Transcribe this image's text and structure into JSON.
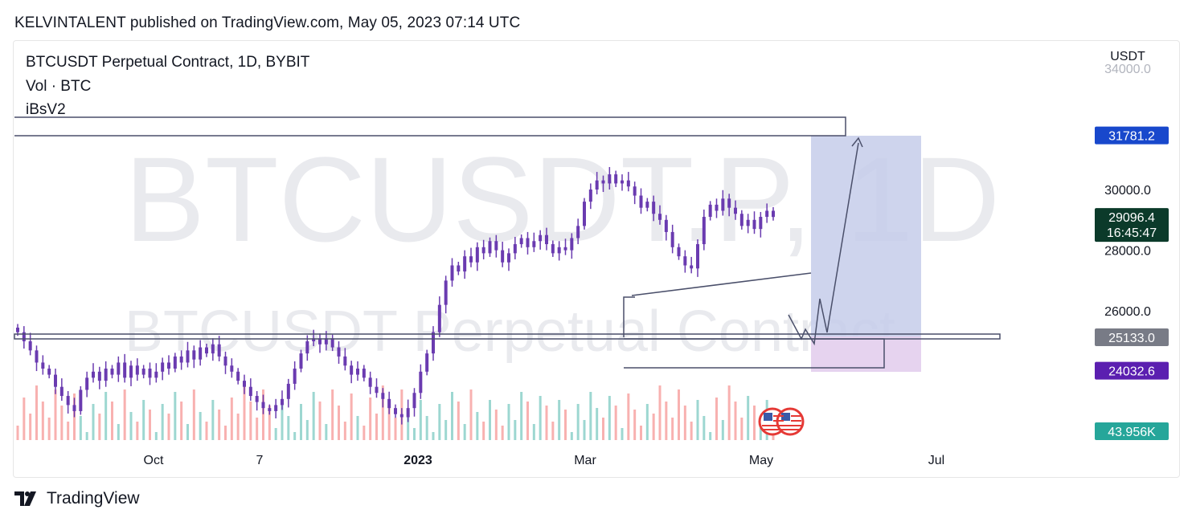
{
  "header": {
    "published_line": "KELVINTALENT published on TradingView.com, May 05, 2023 07:14 UTC"
  },
  "legend": {
    "symbol_line": "BTCUSDT Perpetual Contract, 1D, BYBIT",
    "volume_line": "Vol · BTC",
    "indicator_line": "iBsV2"
  },
  "watermark": {
    "big": "BTCUSDT.P, 1D",
    "sub": "BTCUSDT Perpetual Contract"
  },
  "footer": {
    "brand": "TradingView"
  },
  "colors": {
    "up": "#26a69a",
    "down": "#ef5350",
    "candle": "#6a3bb0",
    "projection_box": "#9aa6d8",
    "stop_box": "#c8a6e2"
  },
  "chart_data": {
    "type": "candlestick",
    "symbol": "BTCUSDT Perpetual Contract",
    "timeframe": "1D",
    "exchange": "BYBIT",
    "currency": "USDT",
    "y_axis": {
      "ticks": [
        "34000.0",
        "30000.0",
        "28000.0",
        "26000.0"
      ],
      "range": [
        22500,
        34000
      ]
    },
    "x_axis": {
      "ticks": [
        "Oct",
        "7",
        "2023",
        "Mar",
        "May",
        "Jul"
      ]
    },
    "price_labels": [
      {
        "label": "31781.2",
        "color": "#1848cc",
        "value": 31781.2
      },
      {
        "label": "29096.4",
        "sublabel": "16:45:47",
        "color": "#0b3a2a",
        "value": 29096.4
      },
      {
        "label": "25133.0",
        "color": "#787b86",
        "value": 25133.0
      },
      {
        "label": "24032.6",
        "color": "#5b1fb0",
        "value": 24032.6
      }
    ],
    "volume_label": {
      "label": "43.956K",
      "color": "#26a69a"
    },
    "levels": [
      {
        "name": "target",
        "value": 31781.2
      },
      {
        "name": "support",
        "value": 25133.0
      }
    ],
    "series": [
      {
        "close": [
          25300,
          25000,
          24700,
          24300,
          24100,
          23900,
          23500,
          23200,
          22900,
          22700,
          23400,
          23800,
          24000,
          23700,
          24100,
          23900,
          24300,
          23800,
          24200,
          23900,
          24100,
          23800,
          24000,
          24300,
          24100,
          24500,
          24300,
          24700,
          24400,
          24800,
          24600,
          24900,
          24500,
          24200,
          24000,
          23700,
          23500,
          23200,
          23000,
          22800,
          22700,
          22900,
          23100,
          23600,
          24100,
          24600,
          25000,
          25100,
          24900,
          25100,
          24800,
          24500,
          24200,
          23900,
          24100,
          23800,
          23500,
          23300,
          23100,
          22800,
          22600,
          22500,
          22800,
          23300,
          24000,
          24600,
          25300,
          26200,
          27000,
          27500,
          27300,
          27800,
          27600,
          28100,
          27900,
          28300,
          28000,
          27600,
          27900,
          28200,
          28400,
          28100,
          28300,
          28500,
          28200,
          27900,
          28100,
          28000,
          28400,
          28800,
          29600,
          30000,
          30300,
          30200,
          30500,
          30200,
          30300,
          30100,
          29800,
          29400,
          29600,
          29200,
          29000,
          28600,
          28100,
          27800,
          27500,
          27400,
          28200,
          29100,
          29500,
          29300,
          29700,
          29400,
          29200,
          28800,
          29000,
          28700,
          29100,
          29300,
          29096.4
        ]
      }
    ]
  }
}
